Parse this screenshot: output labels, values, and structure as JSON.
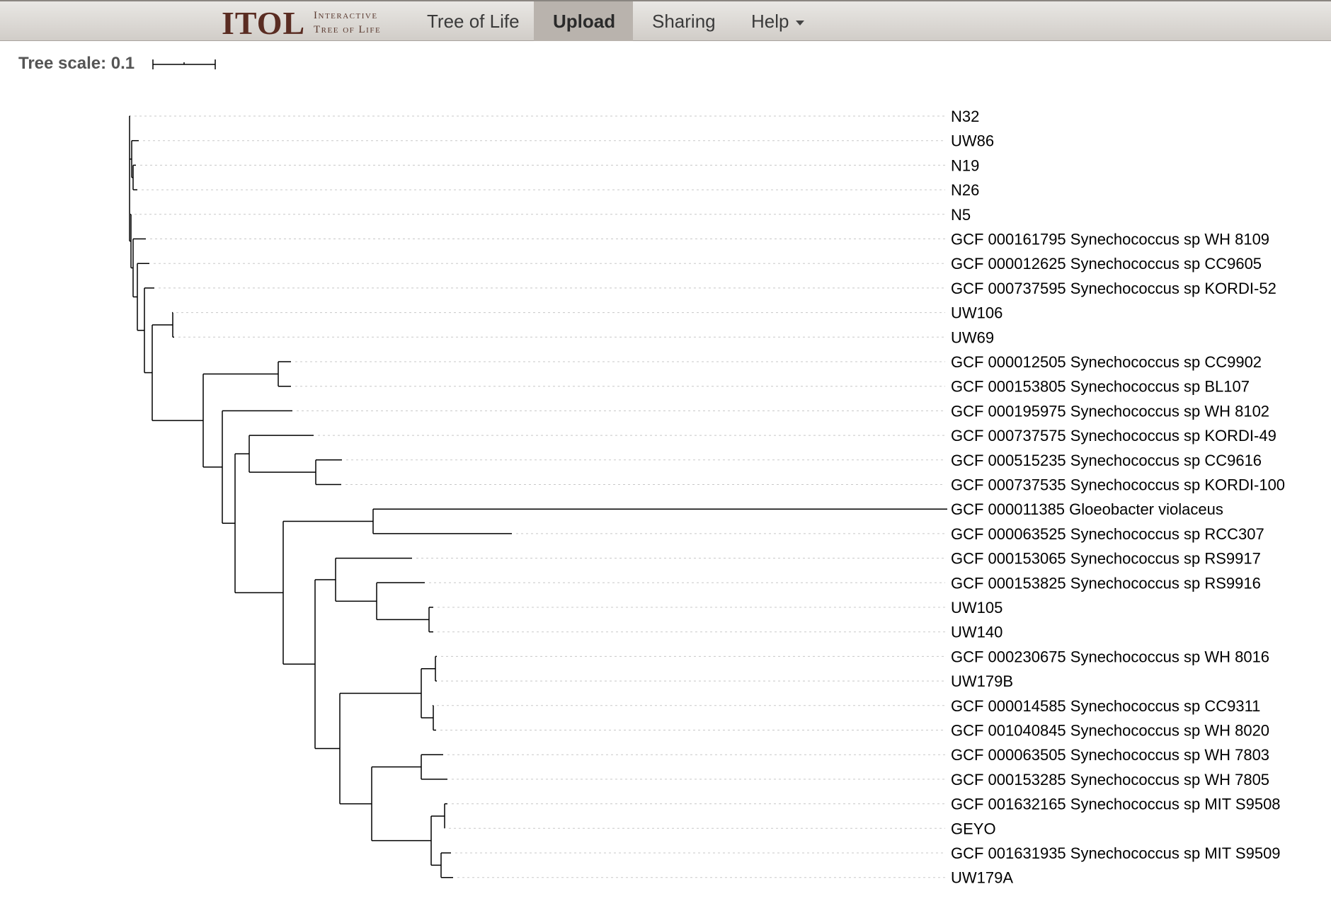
{
  "nav": {
    "logo_main": "ITOL",
    "logo_line1": "Interactive",
    "logo_line2": "Tree of Life",
    "items": [
      {
        "label": "Tree of Life",
        "active": false
      },
      {
        "label": "Upload",
        "active": true
      },
      {
        "label": "Sharing",
        "active": false
      },
      {
        "label": "Help",
        "active": false,
        "dropdown": true
      }
    ]
  },
  "tree_scale": {
    "label": "Tree scale: 0.1",
    "value": 0.1
  },
  "tree": {
    "leaves": [
      "N32",
      "UW86",
      "N19",
      "N26",
      "N5",
      "GCF 000161795 Synechococcus sp WH 8109",
      "GCF 000012625 Synechococcus sp CC9605",
      "GCF 000737595 Synechococcus sp KORDI-52",
      "UW106",
      "UW69",
      "GCF 000012505 Synechococcus sp CC9902",
      "GCF 000153805 Synechococcus sp BL107",
      "GCF 000195975 Synechococcus sp WH 8102",
      "GCF 000737575 Synechococcus sp KORDI-49",
      "GCF 000515235 Synechococcus sp CC9616",
      "GCF 000737535 Synechococcus sp KORDI-100",
      "GCF 000011385 Gloeobacter violaceus",
      "GCF 000063525 Synechococcus sp RCC307",
      "GCF 000153065 Synechococcus sp RS9917",
      "GCF 000153825 Synechococcus sp RS9916",
      "UW105",
      "UW140",
      "GCF 000230675 Synechococcus sp WH 8016",
      "UW179B",
      "GCF 000014585 Synechococcus sp CC9311",
      "GCF 001040845 Synechococcus sp WH 8020",
      "GCF 000063505 Synechococcus sp WH 7803",
      "GCF 000153285 Synechococcus sp WH 7805",
      "GCF 001632165 Synechococcus sp MIT S9508",
      "GEYO",
      "GCF 001631935 Synechococcus sp MIT S9509",
      "UW179A"
    ]
  }
}
